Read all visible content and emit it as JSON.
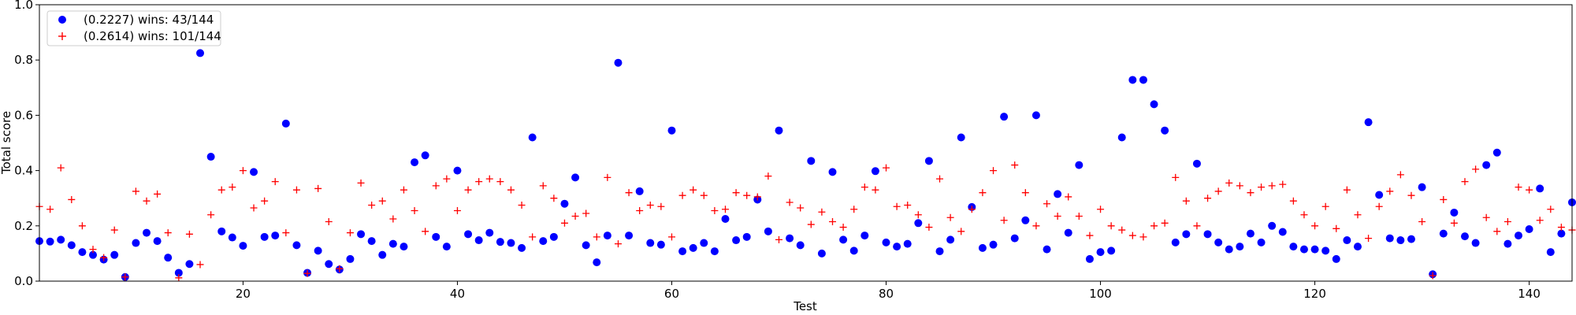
{
  "chart_data": {
    "type": "scatter",
    "title": "",
    "xlabel": "Test",
    "ylabel": "Total score",
    "xlim": [
      1,
      144
    ],
    "ylim": [
      0.0,
      1.0
    ],
    "xticks": [
      20,
      40,
      60,
      80,
      100,
      120,
      140
    ],
    "yticks": [
      0.0,
      0.2,
      0.4,
      0.6,
      0.8,
      1.0
    ],
    "xtick_labels": [
      "20",
      "40",
      "60",
      "80",
      "100",
      "120",
      "140"
    ],
    "ytick_labels": [
      "0.0",
      "0.2",
      "0.4",
      "0.6",
      "0.8",
      "1.0"
    ],
    "grid": false,
    "legend_position": "top-left",
    "series": [
      {
        "name": "(0.2227) wins: 43/144",
        "marker": "circle",
        "color": "#0000ff",
        "x": [
          1,
          2,
          3,
          4,
          5,
          6,
          7,
          8,
          9,
          10,
          11,
          12,
          13,
          14,
          15,
          16,
          17,
          18,
          19,
          20,
          21,
          22,
          23,
          24,
          25,
          26,
          27,
          28,
          29,
          30,
          31,
          32,
          33,
          34,
          35,
          36,
          37,
          38,
          39,
          40,
          41,
          42,
          43,
          44,
          45,
          46,
          47,
          48,
          49,
          50,
          51,
          52,
          53,
          54,
          55,
          56,
          57,
          58,
          59,
          60,
          61,
          62,
          63,
          64,
          65,
          66,
          67,
          68,
          69,
          70,
          71,
          72,
          73,
          74,
          75,
          76,
          77,
          78,
          79,
          80,
          81,
          82,
          83,
          84,
          85,
          86,
          87,
          88,
          89,
          90,
          91,
          92,
          93,
          94,
          95,
          96,
          97,
          98,
          99,
          100,
          101,
          102,
          103,
          104,
          105,
          106,
          107,
          108,
          109,
          110,
          111,
          112,
          113,
          114,
          115,
          116,
          117,
          118,
          119,
          120,
          121,
          122,
          123,
          124,
          125,
          126,
          127,
          128,
          129,
          130,
          131,
          132,
          133,
          134,
          135,
          136,
          137,
          138,
          139,
          140,
          141,
          142,
          143,
          144
        ],
        "y": [
          0.145,
          0.143,
          0.15,
          0.13,
          0.105,
          0.095,
          0.078,
          0.095,
          0.015,
          0.138,
          0.175,
          0.145,
          0.085,
          0.03,
          0.062,
          0.825,
          0.45,
          0.18,
          0.158,
          0.128,
          0.395,
          0.16,
          0.165,
          0.57,
          0.13,
          0.03,
          0.11,
          0.062,
          0.042,
          0.08,
          0.17,
          0.145,
          0.095,
          0.135,
          0.125,
          0.43,
          0.455,
          0.16,
          0.125,
          0.4,
          0.17,
          0.148,
          0.175,
          0.142,
          0.138,
          0.12,
          0.52,
          0.145,
          0.16,
          0.28,
          0.375,
          0.13,
          0.068,
          0.165,
          0.79,
          0.165,
          0.325,
          0.138,
          0.132,
          0.545,
          0.108,
          0.12,
          0.138,
          0.108,
          0.225,
          0.148,
          0.16,
          0.295,
          0.18,
          0.545,
          0.155,
          0.13,
          0.435,
          0.1,
          0.395,
          0.15,
          0.11,
          0.165,
          0.398,
          0.14,
          0.125,
          0.135,
          0.21,
          0.435,
          0.108,
          0.15,
          0.52,
          0.268,
          0.12,
          0.132,
          0.595,
          0.155,
          0.22,
          0.6,
          0.115,
          0.315,
          0.175,
          0.42,
          0.08,
          0.105,
          0.11,
          0.52,
          0.728,
          0.728,
          0.64,
          0.545,
          0.14,
          0.17,
          0.425,
          0.17,
          0.14,
          0.115,
          0.125,
          0.172,
          0.14,
          0.2,
          0.178,
          0.125,
          0.115,
          0.115,
          0.11,
          0.08,
          0.148,
          0.125,
          0.575,
          0.312,
          0.155,
          0.148,
          0.152,
          0.34,
          0.025,
          0.172,
          0.248,
          0.162,
          0.138,
          0.42,
          0.465,
          0.135,
          0.165,
          0.188,
          0.335,
          0.105,
          0.172,
          0.285
        ]
      },
      {
        "name": "(0.2614) wins: 101/144",
        "marker": "plus",
        "color": "#ff0000",
        "x": [
          1,
          2,
          3,
          4,
          5,
          6,
          7,
          8,
          9,
          10,
          11,
          12,
          13,
          14,
          15,
          16,
          17,
          18,
          19,
          20,
          21,
          22,
          23,
          24,
          25,
          26,
          27,
          28,
          29,
          30,
          31,
          32,
          33,
          34,
          35,
          36,
          37,
          38,
          39,
          40,
          41,
          42,
          43,
          44,
          45,
          46,
          47,
          48,
          49,
          50,
          51,
          52,
          53,
          54,
          55,
          56,
          57,
          58,
          59,
          60,
          61,
          62,
          63,
          64,
          65,
          66,
          67,
          68,
          69,
          70,
          71,
          72,
          73,
          74,
          75,
          76,
          77,
          78,
          79,
          80,
          81,
          82,
          83,
          84,
          85,
          86,
          87,
          88,
          89,
          90,
          91,
          92,
          93,
          94,
          95,
          96,
          97,
          98,
          99,
          100,
          101,
          102,
          103,
          104,
          105,
          106,
          107,
          108,
          109,
          110,
          111,
          112,
          113,
          114,
          115,
          116,
          117,
          118,
          119,
          120,
          121,
          122,
          123,
          124,
          125,
          126,
          127,
          128,
          129,
          130,
          131,
          132,
          133,
          134,
          135,
          136,
          137,
          138,
          139,
          140,
          141,
          142,
          143,
          144
        ],
        "y": [
          0.27,
          0.26,
          0.41,
          0.295,
          0.2,
          0.115,
          0.085,
          0.185,
          0.015,
          0.325,
          0.29,
          0.315,
          0.175,
          0.012,
          0.17,
          0.06,
          0.24,
          0.33,
          0.34,
          0.4,
          0.265,
          0.29,
          0.36,
          0.175,
          0.33,
          0.028,
          0.335,
          0.215,
          0.045,
          0.175,
          0.355,
          0.275,
          0.29,
          0.225,
          0.33,
          0.255,
          0.18,
          0.345,
          0.37,
          0.255,
          0.33,
          0.36,
          0.37,
          0.36,
          0.33,
          0.275,
          0.16,
          0.345,
          0.3,
          0.21,
          0.235,
          0.245,
          0.16,
          0.375,
          0.135,
          0.32,
          0.255,
          0.275,
          0.27,
          0.16,
          0.31,
          0.33,
          0.31,
          0.255,
          0.26,
          0.32,
          0.31,
          0.305,
          0.38,
          0.15,
          0.285,
          0.265,
          0.205,
          0.25,
          0.215,
          0.195,
          0.26,
          0.34,
          0.33,
          0.41,
          0.27,
          0.275,
          0.24,
          0.195,
          0.37,
          0.23,
          0.18,
          0.26,
          0.32,
          0.4,
          0.22,
          0.42,
          0.32,
          0.2,
          0.28,
          0.235,
          0.305,
          0.235,
          0.165,
          0.26,
          0.2,
          0.185,
          0.165,
          0.16,
          0.2,
          0.21,
          0.375,
          0.29,
          0.2,
          0.3,
          0.325,
          0.355,
          0.345,
          0.32,
          0.34,
          0.345,
          0.35,
          0.29,
          0.24,
          0.2,
          0.27,
          0.19,
          0.33,
          0.24,
          0.155,
          0.27,
          0.325,
          0.385,
          0.31,
          0.215,
          0.02,
          0.295,
          0.21,
          0.36,
          0.405,
          0.23,
          0.18,
          0.215,
          0.34,
          0.33,
          0.22,
          0.26,
          0.195,
          0.185
        ]
      }
    ]
  }
}
